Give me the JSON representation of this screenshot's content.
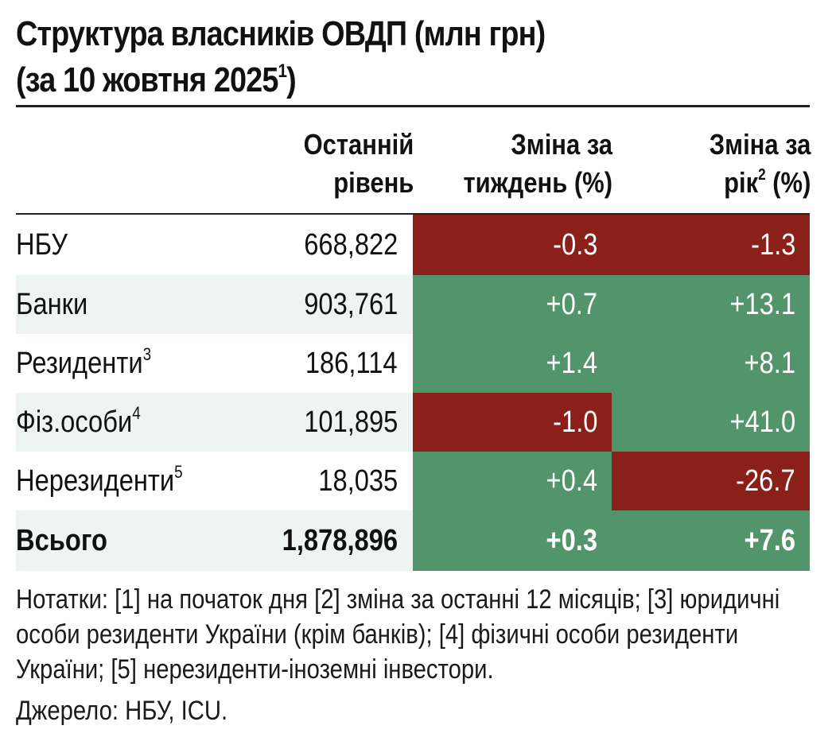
{
  "title": {
    "line1": "Структура власників ОВДП (млн грн)",
    "line2": "(за 10 жовтня 2025",
    "line2_sup": "1",
    "line2_end": ")"
  },
  "headers": {
    "level": [
      "Останній",
      "рівень"
    ],
    "week": [
      "Зміна за",
      "тиждень (%)"
    ],
    "year_a": "Зміна за",
    "year_b": "рік",
    "year_sup": "2",
    "year_c": " (%)"
  },
  "rows": [
    {
      "label": "НБУ",
      "sup": "",
      "level": "668,822",
      "week": "-0.3",
      "year": "-1.3"
    },
    {
      "label": "Банки",
      "sup": "",
      "level": "903,761",
      "week": "+0.7",
      "year": "+13.1"
    },
    {
      "label": "Резиденти",
      "sup": "3",
      "level": "186,114",
      "week": "+1.4",
      "year": "+8.1"
    },
    {
      "label": "Фіз.особи",
      "sup": "4",
      "level": "101,895",
      "week": "-1.0",
      "year": "+41.0"
    },
    {
      "label": "Нерезиденти",
      "sup": "5",
      "level": "18,035",
      "week": "+0.4",
      "year": "-26.7"
    },
    {
      "label": "Всього",
      "sup": "",
      "level": "1,878,896",
      "week": "+0.3",
      "year": "+7.6"
    }
  ],
  "colors": {
    "positive": "#52956a",
    "negative": "#8b1f1a",
    "alt_row": "#eef4f1"
  },
  "notes": "Нотатки: [1] на початок дня [2] зміна за останні 12 місяців; [3] юридичні особи  резиденти України (крім банків); [4] фізичні особи резиденти України; [5] нерезиденти-іноземні інвестори.",
  "source": "Джерело: НБУ, ICU."
}
